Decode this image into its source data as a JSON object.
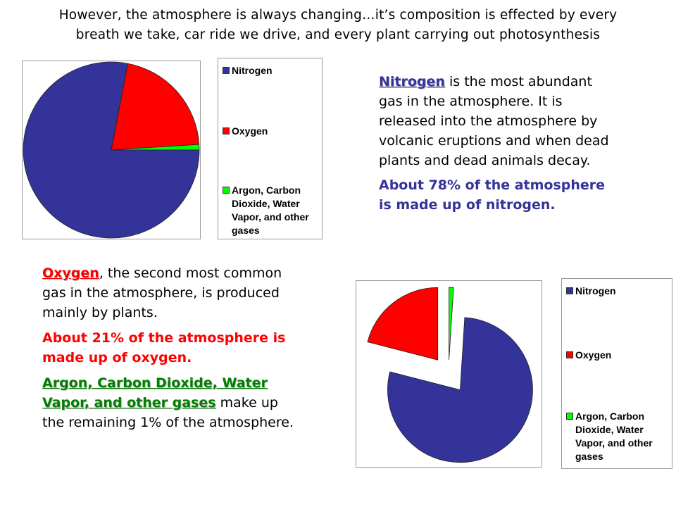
{
  "header": {
    "line1": "However, the atmosphere is always changing…it’s composition is effected by every",
    "line2": "breath we take, car ride we drive, and every plant carrying out photosynthesis"
  },
  "colors": {
    "nitrogen": "#333399",
    "oxygen": "#ff0000",
    "other": "#00ff00"
  },
  "chart_data": [
    {
      "type": "pie",
      "title": "",
      "legend_position": "right",
      "categories": [
        "Nitrogen",
        "Oxygen",
        "Argon, Carbon Dioxide, Water Vapor, and other gases"
      ],
      "values": [
        78,
        21,
        1
      ],
      "exploded": false
    },
    {
      "type": "pie",
      "title": "",
      "legend_position": "right",
      "categories": [
        "Nitrogen",
        "Oxygen",
        "Argon, Carbon Dioxide, Water Vapor, and other gases"
      ],
      "values": [
        78,
        21,
        1
      ],
      "exploded": true
    }
  ],
  "legend": {
    "nitrogen": "Nitrogen",
    "oxygen": "Oxygen",
    "other_line1": "Argon, Carbon",
    "other_line2": "Dioxide, Water",
    "other_line3": "Vapor, and other",
    "other_line4": "gases"
  },
  "nitrogen_text": {
    "head": "Nitrogen",
    "line1": " is the most abundant",
    "line2": "gas in the atmosphere.  It is",
    "line3": "released into the atmosphere by",
    "line4": "volcanic eruptions and when dead",
    "line5": "plants and dead animals decay.",
    "fact1": "About 78% of the atmosphere",
    "fact2": "is made up of nitrogen."
  },
  "oxygen_text": {
    "head": "Oxygen",
    "line1": ", the second most common",
    "line2": "gas in the atmosphere, is produced",
    "line3": "mainly by plants.",
    "fact1": "About  21% of the atmosphere is",
    "fact2": "made up of oxygen."
  },
  "other_text": {
    "head1": "Argon, Carbon Dioxide, Water",
    "head2": "Vapor, and other gases",
    "line1": " make up",
    "line2": "the remaining 1% of the atmosphere."
  }
}
